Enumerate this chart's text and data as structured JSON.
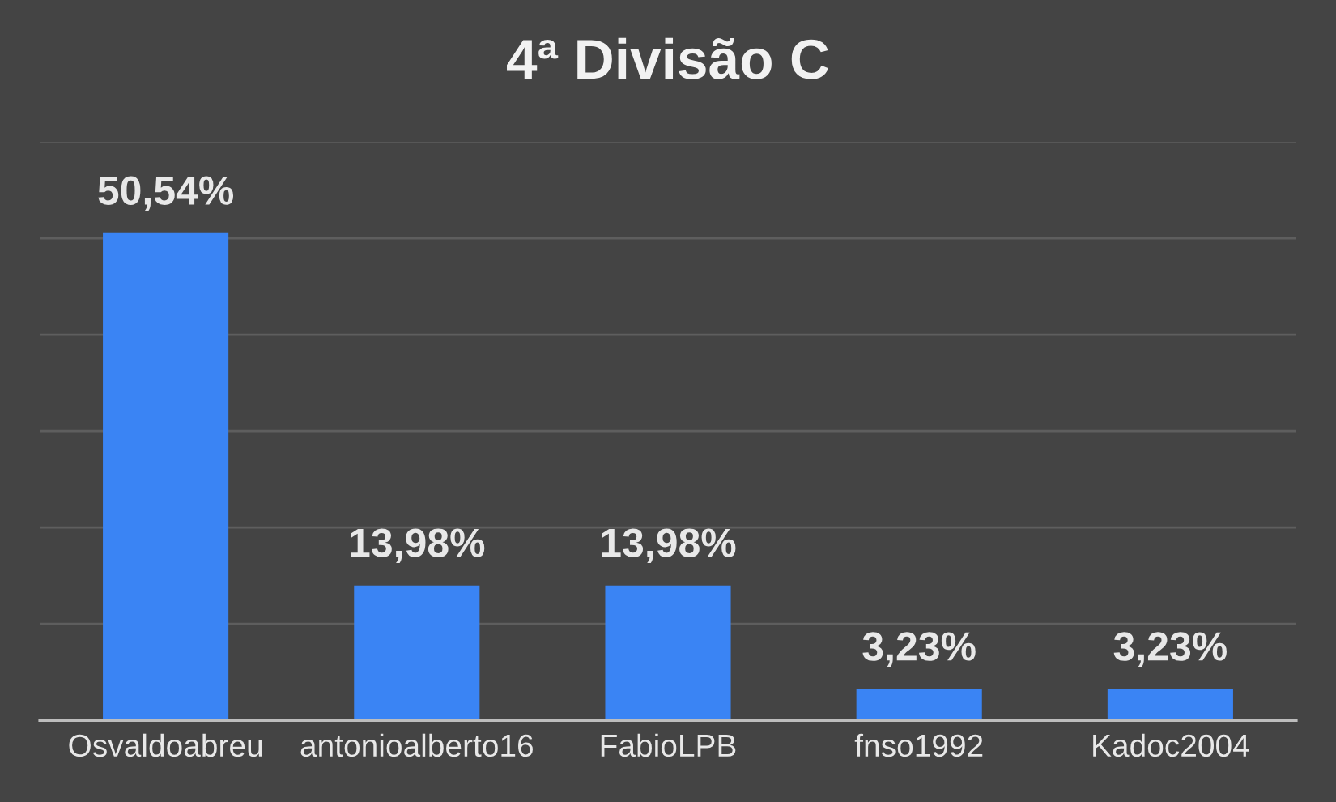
{
  "chart_data": {
    "type": "bar",
    "title": "4ª Divisão C",
    "categories": [
      "Osvaldoabreu",
      "antonioalberto16",
      "FabioLPB",
      "fnso1992",
      "Kadoc2004"
    ],
    "values": [
      50.54,
      13.98,
      13.98,
      3.23,
      3.23
    ],
    "value_labels": [
      "50,54%",
      "13,98%",
      "13,98%",
      "3,23%",
      "3,23%"
    ],
    "color": "#3a84f4",
    "ylim": [
      0,
      60
    ],
    "yticks": [
      {
        "value": 0,
        "label": null
      },
      {
        "value": 10,
        "label": null
      },
      {
        "value": 20,
        "label": null
      },
      {
        "value": 30,
        "label": null
      },
      {
        "value": 40,
        "label": null
      },
      {
        "value": 50,
        "label": null
      },
      {
        "value": 60,
        "label": null
      }
    ],
    "tick_labels": "x",
    "grid": "y"
  }
}
